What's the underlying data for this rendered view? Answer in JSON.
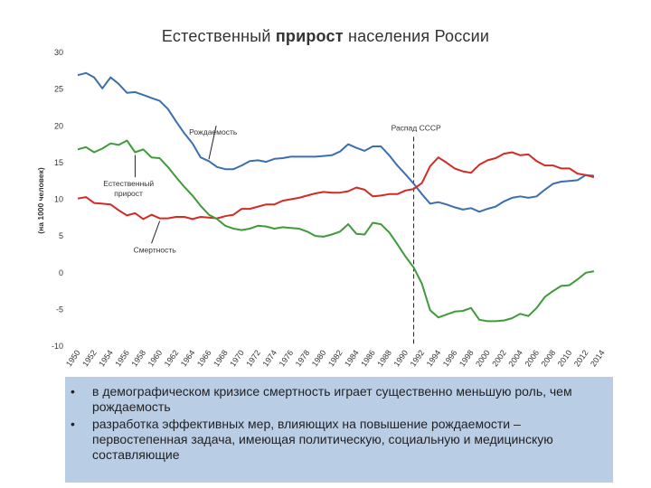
{
  "title": {
    "part1": "Естественный",
    "part2": "прирост",
    "part3": "населения России"
  },
  "notes": [
    "в демографическом кризисе смертность играет существенно меньшую роль, чем рождаемость",
    "разработка эффективных мер, влияющих на  повышение рождаемости – первостепенная задача, имеющая политическую, социальную и медицинскую составляющие"
  ],
  "colors": {
    "births": "#3a6fb0",
    "deaths": "#d42a25",
    "natural": "#3f9a3a",
    "note_background": "#b9cde5"
  },
  "chart_data": {
    "type": "line",
    "title": "Естественный прирост населения России",
    "ylabel": "(на 1000 человек)",
    "xlabel": "",
    "ylim": [
      -10,
      30
    ],
    "xlim": [
      1950,
      2014
    ],
    "yticks": [
      "-10",
      "-5",
      "0",
      "5",
      "10",
      "15",
      "20",
      "25",
      "30"
    ],
    "xticks": [
      "1950",
      "1952",
      "1954",
      "1956",
      "1958",
      "1960",
      "1962",
      "1964",
      "1966",
      "1968",
      "1970",
      "1972",
      "1974",
      "1976",
      "1978",
      "1980",
      "1982",
      "1984",
      "1986",
      "1988",
      "1990",
      "1992",
      "1994",
      "1996",
      "1998",
      "2000",
      "2002",
      "2004",
      "2006",
      "2008",
      "2010",
      "2012",
      "2014"
    ],
    "grid": false,
    "annotations": [
      {
        "text": "Рождаемость",
        "series": "births",
        "at": [
          1968,
          21
        ]
      },
      {
        "text": "Естественный",
        "text2": "прирост",
        "series": "natural",
        "at": [
          1954,
          13
        ]
      },
      {
        "text": "Смертность",
        "series": "deaths",
        "at": [
          1959,
          4
        ]
      },
      {
        "text": "Распад СССР",
        "vline": 1991,
        "at": [
          1991,
          19
        ]
      }
    ],
    "x": [
      1950,
      1951,
      1952,
      1953,
      1954,
      1955,
      1956,
      1957,
      1958,
      1959,
      1960,
      1961,
      1962,
      1963,
      1964,
      1965,
      1966,
      1967,
      1968,
      1969,
      1970,
      1971,
      1972,
      1973,
      1974,
      1975,
      1976,
      1977,
      1978,
      1979,
      1980,
      1981,
      1982,
      1983,
      1984,
      1985,
      1986,
      1987,
      1988,
      1989,
      1990,
      1991,
      1992,
      1993,
      1994,
      1995,
      1996,
      1997,
      1998,
      1999,
      2000,
      2001,
      2002,
      2003,
      2004,
      2005,
      2006,
      2007,
      2008,
      2009,
      2010,
      2011,
      2012,
      2013
    ],
    "series": [
      {
        "key": "births",
        "values": [
          26.9,
          27.2,
          26.6,
          25.1,
          26.6,
          25.7,
          24.5,
          24.6,
          24.2,
          23.8,
          23.4,
          22.3,
          20.6,
          19.0,
          17.6,
          15.7,
          15.2,
          14.4,
          14.1,
          14.1,
          14.6,
          15.2,
          15.3,
          15.1,
          15.5,
          15.6,
          15.8,
          15.8,
          15.8,
          15.8,
          15.9,
          16.0,
          16.5,
          17.5,
          17.0,
          16.6,
          17.2,
          17.2,
          16.0,
          14.6,
          13.4,
          12.1,
          10.7,
          9.4,
          9.6,
          9.3,
          8.9,
          8.6,
          8.8,
          8.3,
          8.7,
          9.0,
          9.7,
          10.2,
          10.4,
          10.2,
          10.4,
          11.3,
          12.1,
          12.4,
          12.5,
          12.6,
          13.3,
          13.2
        ]
      },
      {
        "key": "deaths",
        "values": [
          10.1,
          10.3,
          9.5,
          9.4,
          9.3,
          8.5,
          7.8,
          8.1,
          7.3,
          7.9,
          7.4,
          7.4,
          7.6,
          7.6,
          7.3,
          7.6,
          7.5,
          7.4,
          7.7,
          7.9,
          8.7,
          8.7,
          9.0,
          9.3,
          9.3,
          9.8,
          10.0,
          10.2,
          10.5,
          10.8,
          11.0,
          10.9,
          10.9,
          11.1,
          11.6,
          11.3,
          10.4,
          10.5,
          10.7,
          10.7,
          11.2,
          11.4,
          12.2,
          14.5,
          15.7,
          15.0,
          14.2,
          13.8,
          13.6,
          14.7,
          15.3,
          15.6,
          16.2,
          16.4,
          16.0,
          16.1,
          15.2,
          14.6,
          14.6,
          14.2,
          14.2,
          13.5,
          13.3,
          13.0
        ]
      },
      {
        "key": "natural",
        "values": [
          16.8,
          17.1,
          16.4,
          16.9,
          17.6,
          17.4,
          18.0,
          16.4,
          16.8,
          15.7,
          15.6,
          14.4,
          13.0,
          11.7,
          10.5,
          9.1,
          7.9,
          7.3,
          6.4,
          6.0,
          5.8,
          6.0,
          6.4,
          6.3,
          6.0,
          6.2,
          6.1,
          6.0,
          5.6,
          5.0,
          4.9,
          5.2,
          5.6,
          6.6,
          5.3,
          5.2,
          6.8,
          6.6,
          5.5,
          3.9,
          2.2,
          0.7,
          -1.5,
          -5.1,
          -6.1,
          -5.7,
          -5.3,
          -5.2,
          -4.8,
          -6.4,
          -6.6,
          -6.6,
          -6.5,
          -6.2,
          -5.6,
          -5.9,
          -4.8,
          -3.3,
          -2.5,
          -1.8,
          -1.7,
          -0.9,
          0.0,
          0.2
        ]
      }
    ]
  }
}
